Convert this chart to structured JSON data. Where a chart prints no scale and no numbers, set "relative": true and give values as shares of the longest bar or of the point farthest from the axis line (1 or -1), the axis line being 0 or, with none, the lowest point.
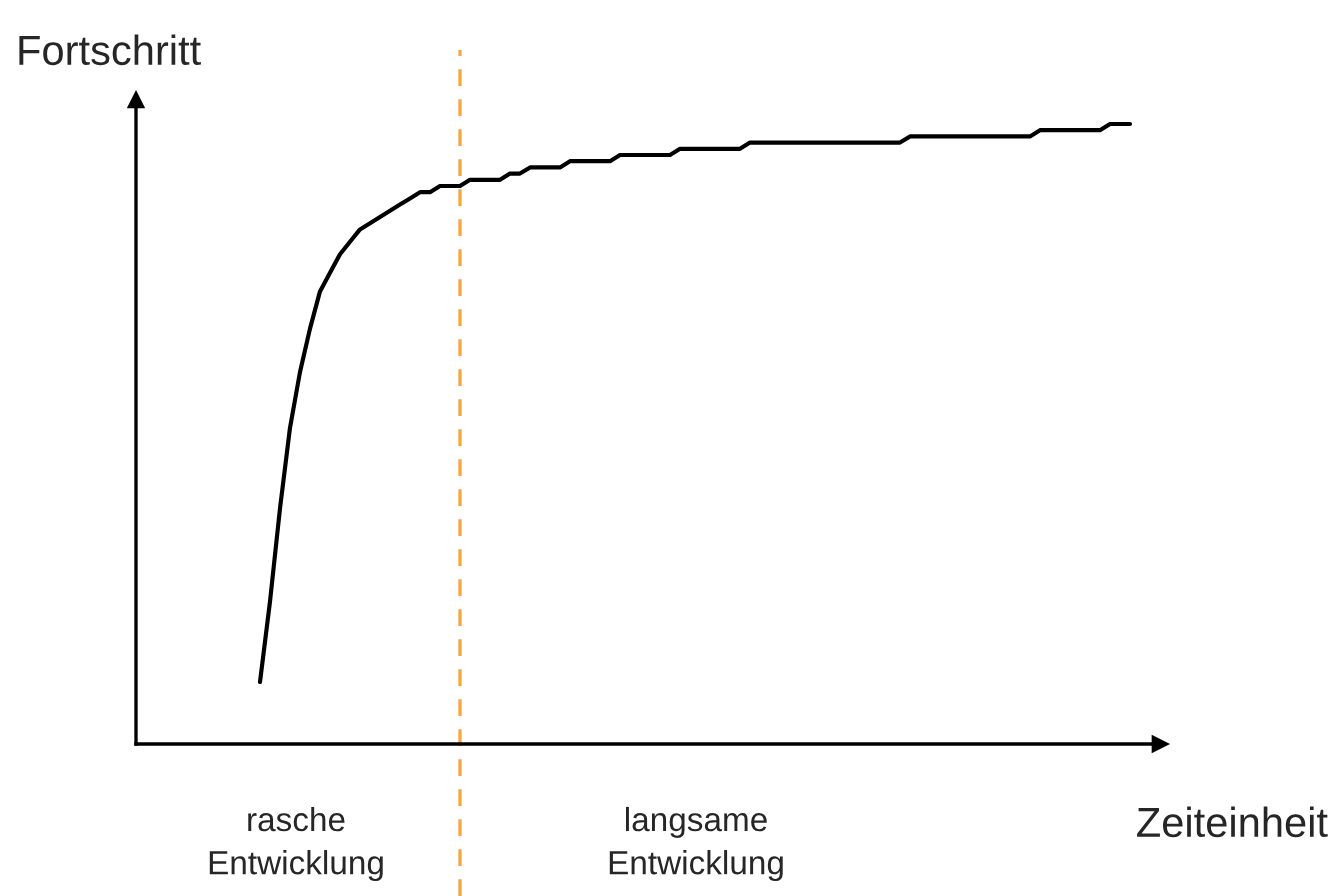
{
  "chart_data": {
    "type": "line",
    "relative": true,
    "xlabel": "Zeiteinheit",
    "ylabel": "Fortschritt",
    "color": "#000000",
    "marker": "none",
    "line_style": "solid",
    "categories": [
      null,
      null,
      null,
      null,
      null,
      null,
      null,
      null,
      null,
      null,
      null,
      null,
      null,
      null,
      null,
      null,
      null,
      null,
      null,
      null,
      null,
      null,
      null,
      null,
      null,
      null,
      null,
      null,
      null,
      null,
      null,
      null,
      null,
      null,
      null,
      null,
      null,
      null,
      null,
      null,
      null,
      null,
      null,
      null,
      null,
      null,
      null,
      null,
      null,
      null,
      null,
      null,
      null,
      null,
      null,
      null,
      null,
      null,
      null,
      null,
      null,
      null,
      null,
      null,
      null,
      null,
      null,
      null,
      null,
      null,
      null,
      null,
      null,
      null,
      null,
      null,
      null,
      null,
      null,
      null,
      null,
      null,
      null,
      null,
      null,
      null,
      null,
      null
    ],
    "values": [
      0.1,
      0.23,
      0.38,
      0.51,
      0.6,
      0.67,
      0.73,
      0.76,
      0.79,
      0.81,
      0.83,
      0.84,
      0.85,
      0.86,
      0.87,
      0.88,
      0.89,
      0.89,
      0.9,
      0.9,
      0.9,
      0.91,
      0.91,
      0.91,
      0.91,
      0.92,
      0.92,
      0.93,
      0.93,
      0.93,
      0.93,
      0.94,
      0.94,
      0.94,
      0.94,
      0.94,
      0.95,
      0.95,
      0.95,
      0.95,
      0.95,
      0.95,
      0.96,
      0.96,
      0.96,
      0.96,
      0.96,
      0.96,
      0.96,
      0.97,
      0.97,
      0.97,
      0.97,
      0.97,
      0.97,
      0.97,
      0.97,
      0.97,
      0.97,
      0.97,
      0.97,
      0.97,
      0.97,
      0.97,
      0.97,
      0.98,
      0.98,
      0.98,
      0.98,
      0.98,
      0.98,
      0.98,
      0.98,
      0.98,
      0.98,
      0.98,
      0.98,
      0.98,
      0.99,
      0.99,
      0.99,
      0.99,
      0.99,
      0.99,
      0.99,
      1.0,
      1.0,
      1.0
    ],
    "annotations": [
      "rasche\nEntwicklung",
      "langsame\nEntwicklung"
    ]
  }
}
